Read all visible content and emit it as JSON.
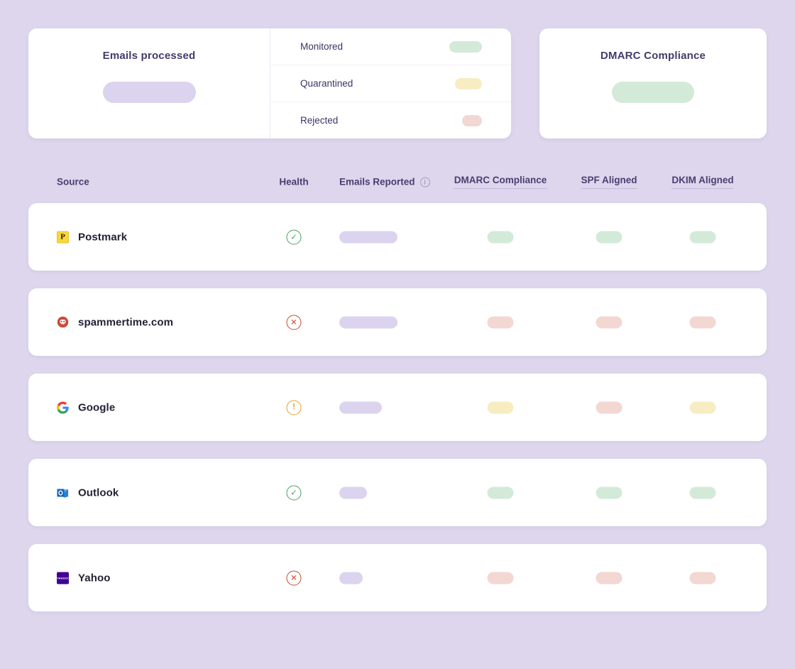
{
  "theme": {
    "page_background": "#DDD6EC",
    "card_background": "#FFFFFF",
    "heading_color": "#453A6D",
    "header_text_color": "#4A3E71",
    "row_label_color": "#232135",
    "pill_colors": {
      "lavender": "#DCD3EE",
      "green": "#D3EAD9",
      "yellow": "#F8ECC3",
      "red": "#F3D7D2"
    },
    "health_colors": {
      "pass": "#44A45E",
      "warning": "#E2A32A",
      "fail": "#C7482F"
    }
  },
  "summary": {
    "emails_processed": {
      "title": "Emails processed",
      "value_pill_color": "lavender",
      "value_pill_width": 131
    },
    "breakdown": [
      {
        "label": "Monitored",
        "status": "green",
        "pill_width": 46
      },
      {
        "label": "Quarantined",
        "status": "yellow",
        "pill_width": 38
      },
      {
        "label": "Rejected",
        "status": "red",
        "pill_width": 28
      }
    ],
    "dmarc_compliance": {
      "title": "DMARC Compliance",
      "value_pill_color": "green",
      "value_pill_width": 116
    }
  },
  "table": {
    "headers": {
      "source": "Source",
      "health": "Health",
      "emails_reported": "Emails Reported",
      "emails_reported_info_icon": "info-icon",
      "dmarc_compliance": "DMARC Compliance",
      "spf_aligned": "SPF Aligned",
      "dkim_aligned": "DKIM Aligned"
    },
    "rows": [
      {
        "source": "Postmark",
        "icon": "postmark-logo",
        "health": "pass",
        "emails_reported_pill_width": 82,
        "dmarc": "green",
        "spf": "green",
        "dkim": "green"
      },
      {
        "source": "spammertime.com",
        "icon": "spam-skull-logo",
        "health": "fail",
        "emails_reported_pill_width": 82,
        "dmarc": "red",
        "spf": "red",
        "dkim": "red"
      },
      {
        "source": "Google",
        "icon": "google-logo",
        "health": "warning",
        "emails_reported_pill_width": 60,
        "dmarc": "yellow",
        "spf": "red",
        "dkim": "yellow"
      },
      {
        "source": "Outlook",
        "icon": "outlook-logo",
        "health": "pass",
        "emails_reported_pill_width": 39,
        "dmarc": "green",
        "spf": "green",
        "dkim": "green"
      },
      {
        "source": "Yahoo",
        "icon": "yahoo-logo",
        "health": "fail",
        "emails_reported_pill_width": 33,
        "dmarc": "red",
        "spf": "red",
        "dkim": "red"
      }
    ],
    "health_glyphs": {
      "pass": "check-circle-icon",
      "warning": "alert-circle-icon",
      "fail": "x-circle-icon"
    }
  }
}
